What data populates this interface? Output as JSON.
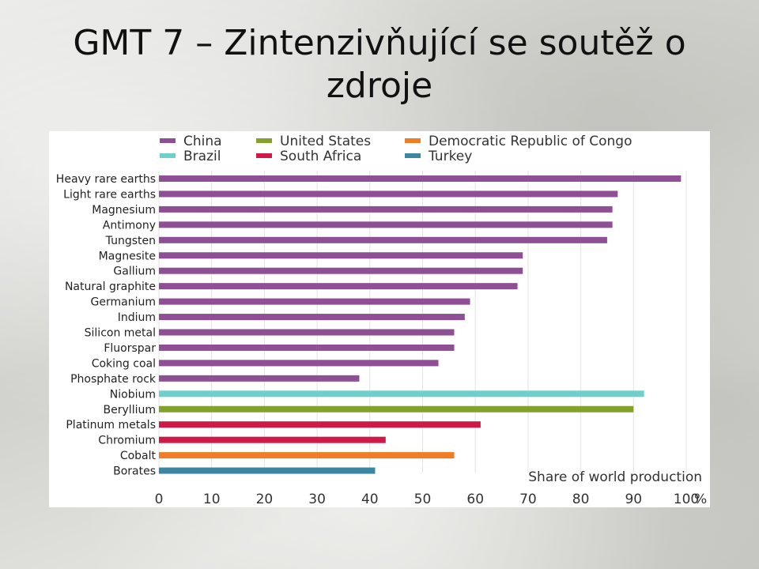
{
  "slide": {
    "title_line1": "GMT 7 – Zintenzivňující se soutěž o",
    "title_line2": "zdroje"
  },
  "chart_data": {
    "type": "bar",
    "orientation": "horizontal",
    "xlabel": "Share of world production",
    "xunit": "%",
    "xlim": [
      0,
      100
    ],
    "xticks": [
      0,
      10,
      20,
      30,
      40,
      50,
      60,
      70,
      80,
      90,
      100
    ],
    "grid": "vertical",
    "legend_position": "top",
    "legend": [
      {
        "name": "China",
        "color": "#8e4f94"
      },
      {
        "name": "Brazil",
        "color": "#6fcfcc"
      },
      {
        "name": "United States",
        "color": "#84a12c"
      },
      {
        "name": "South Africa",
        "color": "#cf1a48"
      },
      {
        "name": "Democratic Republic of Congo",
        "color": "#f07d23"
      },
      {
        "name": "Turkey",
        "color": "#3b87a2"
      }
    ],
    "bars": [
      {
        "category": "Heavy rare earths",
        "value": 99,
        "country": "China"
      },
      {
        "category": "Light rare earths",
        "value": 87,
        "country": "China"
      },
      {
        "category": "Magnesium",
        "value": 86,
        "country": "China"
      },
      {
        "category": "Antimony",
        "value": 86,
        "country": "China"
      },
      {
        "category": "Tungsten",
        "value": 85,
        "country": "China"
      },
      {
        "category": "Magnesite",
        "value": 69,
        "country": "China"
      },
      {
        "category": "Gallium",
        "value": 69,
        "country": "China"
      },
      {
        "category": "Natural graphite",
        "value": 68,
        "country": "China"
      },
      {
        "category": "Germanium",
        "value": 59,
        "country": "China"
      },
      {
        "category": "Indium",
        "value": 58,
        "country": "China"
      },
      {
        "category": "Silicon metal",
        "value": 56,
        "country": "China"
      },
      {
        "category": "Fluorspar",
        "value": 56,
        "country": "China"
      },
      {
        "category": "Coking coal",
        "value": 53,
        "country": "China"
      },
      {
        "category": "Phosphate rock",
        "value": 38,
        "country": "China"
      },
      {
        "category": "Niobium",
        "value": 92,
        "country": "Brazil"
      },
      {
        "category": "Beryllium",
        "value": 90,
        "country": "United States"
      },
      {
        "category": "Platinum metals",
        "value": 61,
        "country": "South Africa"
      },
      {
        "category": "Chromium",
        "value": 43,
        "country": "South Africa"
      },
      {
        "category": "Cobalt",
        "value": 56,
        "country": "Democratic Republic of Congo"
      },
      {
        "category": "Borates",
        "value": 41,
        "country": "Turkey"
      }
    ]
  }
}
